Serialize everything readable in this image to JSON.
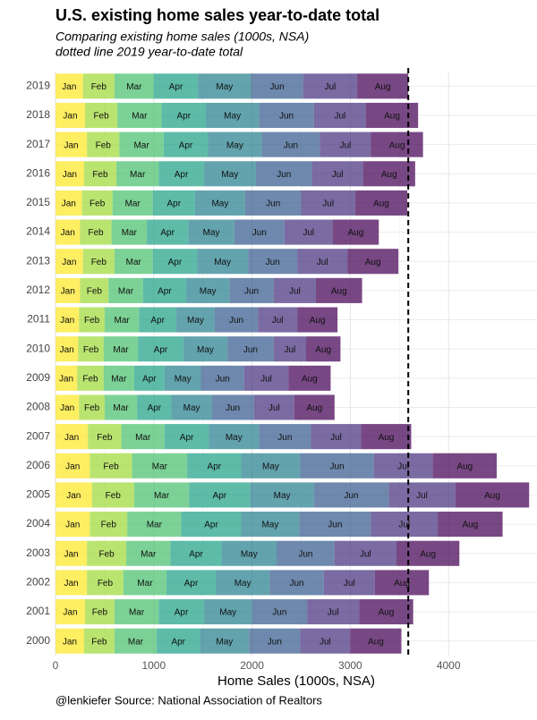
{
  "chart_data": {
    "type": "stacked-bar-horizontal",
    "title": "U.S. existing home sales year-to-date total",
    "subtitle": [
      "Comparing existing home sales (1000s, NSA)",
      "dotted line 2019 year-to-date total"
    ],
    "x_label": "Home Sales (1000s, NSA)",
    "caption": "@lenkiefer Source: National Association of Realtors",
    "categories": [
      "2019",
      "2018",
      "2017",
      "2016",
      "2015",
      "2014",
      "2013",
      "2012",
      "2011",
      "2010",
      "2009",
      "2008",
      "2007",
      "2006",
      "2005",
      "2004",
      "2003",
      "2002",
      "2001",
      "2000"
    ],
    "series": [
      {
        "name": "Jan",
        "color": "#fde725",
        "values": [
          280,
          300,
          320,
          290,
          270,
          250,
          280,
          250,
          240,
          230,
          220,
          240,
          330,
          350,
          370,
          350,
          320,
          320,
          300,
          290
        ]
      },
      {
        "name": "Feb",
        "color": "#a0da39",
        "values": [
          320,
          330,
          330,
          330,
          310,
          320,
          320,
          290,
          260,
          260,
          270,
          260,
          340,
          430,
          430,
          380,
          400,
          370,
          300,
          310
        ]
      },
      {
        "name": "Mar",
        "color": "#4ac16d",
        "values": [
          400,
          450,
          450,
          430,
          410,
          360,
          390,
          350,
          350,
          350,
          310,
          330,
          440,
          560,
          560,
          550,
          450,
          440,
          450,
          430
        ]
      },
      {
        "name": "Apr",
        "color": "#1fa187",
        "values": [
          450,
          450,
          450,
          460,
          430,
          420,
          450,
          440,
          380,
          460,
          310,
          350,
          450,
          550,
          620,
          610,
          520,
          500,
          460,
          440
        ]
      },
      {
        "name": "May",
        "color": "#277f8e",
        "values": [
          540,
          540,
          550,
          530,
          510,
          470,
          520,
          440,
          390,
          450,
          370,
          410,
          510,
          600,
          650,
          590,
          560,
          550,
          490,
          500
        ]
      },
      {
        "name": "Jun",
        "color": "#365c8d",
        "values": [
          530,
          560,
          590,
          570,
          570,
          510,
          500,
          450,
          440,
          470,
          440,
          430,
          530,
          750,
          760,
          730,
          590,
          550,
          560,
          520
        ]
      },
      {
        "name": "Jul",
        "color": "#46327e",
        "values": [
          550,
          530,
          520,
          520,
          550,
          490,
          510,
          430,
          400,
          330,
          450,
          410,
          510,
          600,
          680,
          680,
          630,
          520,
          530,
          510
        ]
      },
      {
        "name": "Aug",
        "color": "#440154",
        "values": [
          520,
          530,
          530,
          530,
          530,
          470,
          520,
          470,
          410,
          350,
          430,
          410,
          510,
          650,
          750,
          660,
          640,
          550,
          550,
          520
        ]
      }
    ],
    "reference_line": 3590,
    "xlim": [
      0,
      4900
    ],
    "xticks": [
      0,
      1000,
      2000,
      3000,
      4000
    ],
    "grid": true
  }
}
